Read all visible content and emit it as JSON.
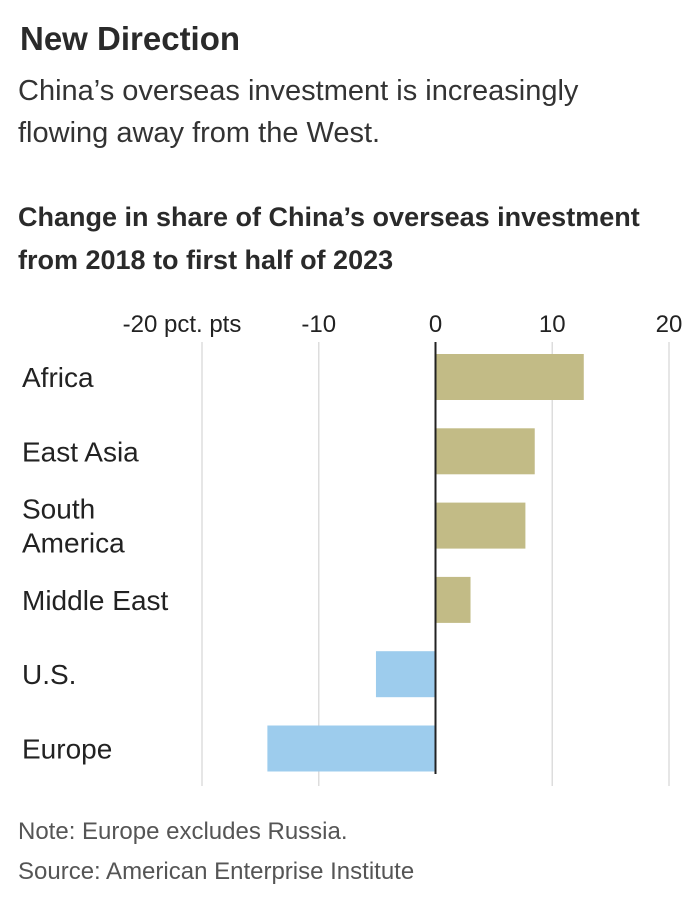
{
  "header": {
    "title": "New Direction",
    "subtitle": "China’s overseas investment is increasingly flowing away from the West."
  },
  "footer": {
    "note": "Note: Europe excludes Russia.",
    "source": "Source: American Enterprise Institute"
  },
  "chart_data": {
    "type": "bar",
    "orientation": "horizontal",
    "title": "Change in share of China’s overseas investment from 2018 to first half of 2023",
    "categories": [
      {
        "id": "africa",
        "lines": [
          "Africa"
        ]
      },
      {
        "id": "east-asia",
        "lines": [
          "East Asia"
        ]
      },
      {
        "id": "south-america",
        "lines": [
          "South",
          "America"
        ]
      },
      {
        "id": "middle-east",
        "lines": [
          "Middle East"
        ]
      },
      {
        "id": "us",
        "lines": [
          "U.S."
        ]
      },
      {
        "id": "europe",
        "lines": [
          "Europe"
        ]
      }
    ],
    "values": [
      12.7,
      8.5,
      7.7,
      3.0,
      -5.1,
      -14.4
    ],
    "xlim": [
      -20,
      20
    ],
    "ticks": [
      {
        "value": -20,
        "label": "-20 pct. pts"
      },
      {
        "value": -10,
        "label": "-10"
      },
      {
        "value": 0,
        "label": "0"
      },
      {
        "value": 10,
        "label": "10"
      },
      {
        "value": 20,
        "label": "20"
      }
    ],
    "grid": true,
    "colors": {
      "positive": "#c2bb86",
      "negative": "#9dcced",
      "grid": "#dddddd",
      "axis": "#222222"
    }
  }
}
